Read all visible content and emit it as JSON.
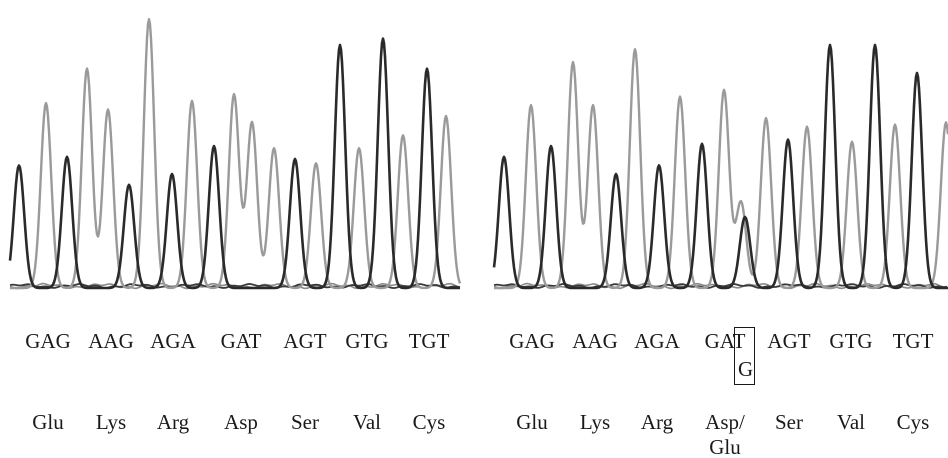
{
  "colors": {
    "dark": "#2a2a2a",
    "light": "#9a9a9a",
    "baseline_dark": "#3a3a3a",
    "baseline_light": "#8a8a8a"
  },
  "chart_data": [
    {
      "type": "chromatogram",
      "codons": [
        "GAG",
        "AAG",
        "AGA",
        "GAT",
        "AGT",
        "GTG",
        "TGT"
      ],
      "amino_acids": [
        "Glu",
        "Lys",
        "Arg",
        "Asp",
        "Ser",
        "Val",
        "Cys"
      ],
      "peaks": [
        {
          "x": 9,
          "h": 0.57,
          "tone": "dark"
        },
        {
          "x": 36,
          "h": 0.86,
          "tone": "light"
        },
        {
          "x": 57,
          "h": 0.61,
          "tone": "dark"
        },
        {
          "x": 77,
          "h": 1.02,
          "tone": "light"
        },
        {
          "x": 98,
          "h": 0.83,
          "tone": "light"
        },
        {
          "x": 119,
          "h": 0.48,
          "tone": "dark"
        },
        {
          "x": 139,
          "h": 1.25,
          "tone": "light"
        },
        {
          "x": 162,
          "h": 0.53,
          "tone": "dark"
        },
        {
          "x": 182,
          "h": 0.87,
          "tone": "light"
        },
        {
          "x": 204,
          "h": 0.66,
          "tone": "dark"
        },
        {
          "x": 224,
          "h": 0.9,
          "tone": "light"
        },
        {
          "x": 242,
          "h": 0.77,
          "tone": "light"
        },
        {
          "x": 264,
          "h": 0.65,
          "tone": "light"
        },
        {
          "x": 285,
          "h": 0.6,
          "tone": "dark"
        },
        {
          "x": 306,
          "h": 0.58,
          "tone": "light"
        },
        {
          "x": 330,
          "h": 1.13,
          "tone": "dark"
        },
        {
          "x": 349,
          "h": 0.65,
          "tone": "light"
        },
        {
          "x": 373,
          "h": 1.16,
          "tone": "dark"
        },
        {
          "x": 393,
          "h": 0.71,
          "tone": "light"
        },
        {
          "x": 417,
          "h": 1.02,
          "tone": "dark"
        },
        {
          "x": 436,
          "h": 0.8,
          "tone": "light"
        }
      ]
    },
    {
      "type": "chromatogram",
      "codons": [
        "GAG",
        "AAG",
        "AGA",
        "GAT",
        "AGT",
        "GTG",
        "TGT"
      ],
      "amino_acids": [
        "Glu",
        "Lys",
        "Arg",
        "Asp/",
        "Ser",
        "Val",
        "Cys"
      ],
      "amino_acid_line2": "Glu",
      "heterozygous_base": "G",
      "heterozygous_codon_index": 3,
      "peaks": [
        {
          "x": 10,
          "h": 0.61,
          "tone": "dark"
        },
        {
          "x": 37,
          "h": 0.85,
          "tone": "light"
        },
        {
          "x": 57,
          "h": 0.66,
          "tone": "dark"
        },
        {
          "x": 79,
          "h": 1.05,
          "tone": "light"
        },
        {
          "x": 99,
          "h": 0.85,
          "tone": "light"
        },
        {
          "x": 122,
          "h": 0.53,
          "tone": "dark"
        },
        {
          "x": 141,
          "h": 1.11,
          "tone": "light"
        },
        {
          "x": 165,
          "h": 0.57,
          "tone": "dark"
        },
        {
          "x": 186,
          "h": 0.89,
          "tone": "light"
        },
        {
          "x": 208,
          "h": 0.67,
          "tone": "dark"
        },
        {
          "x": 230,
          "h": 0.92,
          "tone": "light"
        },
        {
          "x": 247,
          "h": 0.4,
          "tone": "light"
        },
        {
          "x": 251,
          "h": 0.33,
          "tone": "dark"
        },
        {
          "x": 272,
          "h": 0.79,
          "tone": "light"
        },
        {
          "x": 294,
          "h": 0.69,
          "tone": "dark"
        },
        {
          "x": 313,
          "h": 0.75,
          "tone": "light"
        },
        {
          "x": 336,
          "h": 1.13,
          "tone": "dark"
        },
        {
          "x": 358,
          "h": 0.68,
          "tone": "light"
        },
        {
          "x": 381,
          "h": 1.13,
          "tone": "dark"
        },
        {
          "x": 401,
          "h": 0.76,
          "tone": "light"
        },
        {
          "x": 423,
          "h": 1.0,
          "tone": "dark"
        },
        {
          "x": 452,
          "h": 0.77,
          "tone": "light"
        }
      ]
    }
  ]
}
